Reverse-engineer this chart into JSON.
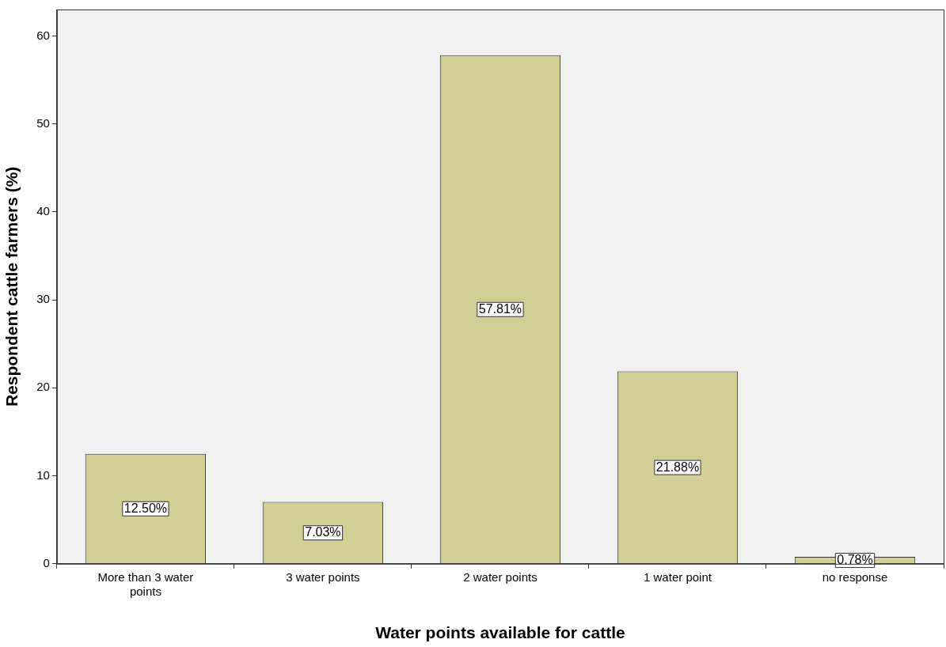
{
  "chart_data": {
    "type": "bar",
    "xlabel": "Water points available for cattle",
    "ylabel": "Respondent cattle farmers (%)",
    "categories": [
      "More than 3 water points",
      "3 water points",
      "2 water points",
      "1 water point",
      "no response"
    ],
    "values": [
      12.5,
      7.03,
      57.81,
      21.88,
      0.78
    ],
    "value_labels": [
      "12.50%",
      "7.03%",
      "57.81%",
      "21.88%",
      "0.78%"
    ],
    "color": "#d3cd96",
    "ylim": [
      0,
      63
    ],
    "yticks": [
      0,
      10,
      20,
      30,
      40,
      50,
      60
    ],
    "grid": false,
    "legend": false
  }
}
